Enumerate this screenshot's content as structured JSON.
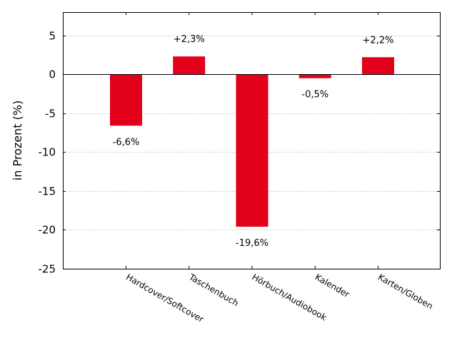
{
  "chart_data": {
    "type": "bar",
    "categories": [
      "Hardcover/Softcover",
      "Taschenbuch",
      "Hörbuch/Audiobook",
      "Kalender",
      "Karten/Globen"
    ],
    "values": [
      -6.6,
      2.3,
      -19.6,
      -0.5,
      2.2
    ],
    "data_labels": [
      "-6,6%",
      "+2,3%",
      "-19,6%",
      "-0,5%",
      "+2,2%"
    ],
    "ylabel": "in Prozent (%)",
    "xlabel": "",
    "ylim": [
      -25,
      8
    ],
    "yticks": [
      5,
      0,
      -5,
      -10,
      -15,
      -20,
      -25
    ],
    "ytick_labels": [
      "5",
      "0",
      "-5",
      "-10",
      "-15",
      "-20",
      "-25"
    ],
    "grid": "horizontal-dotted",
    "bar_color": "#e2001a",
    "zero_line": true,
    "legend": "none"
  }
}
